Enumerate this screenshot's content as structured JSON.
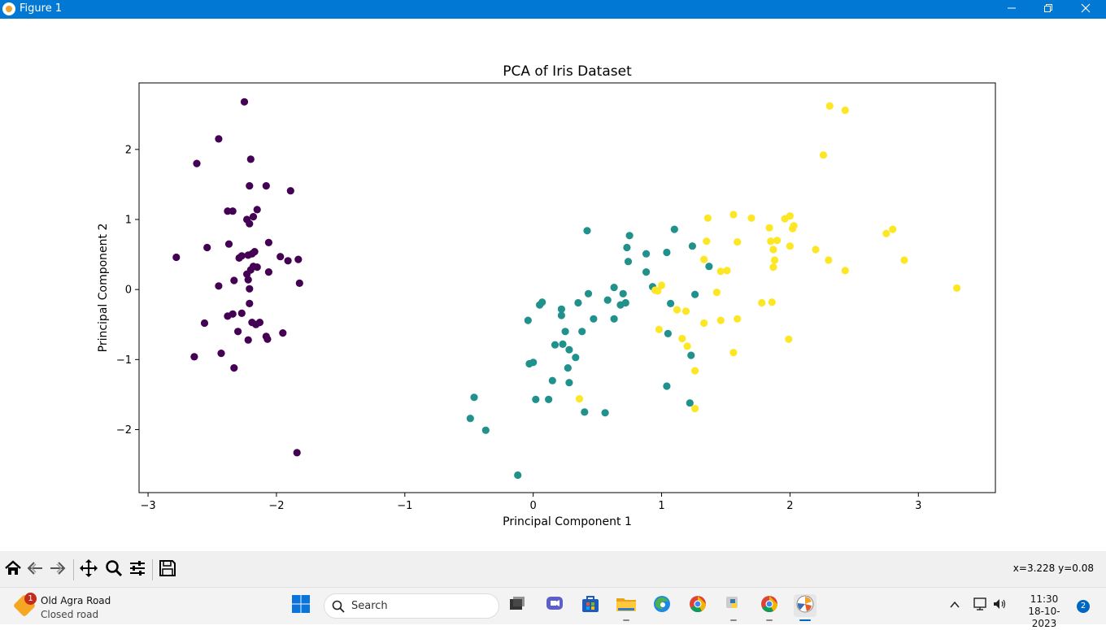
{
  "window": {
    "title": "Figure 1",
    "controls": [
      "minimize-icon",
      "maximize-icon",
      "close-icon"
    ]
  },
  "colors": {
    "titlebar": "#0078d4",
    "setosa": "#440154",
    "versicolor": "#21918c",
    "virginica": "#fde725"
  },
  "chart_data": {
    "type": "scatter",
    "title": "PCA of Iris Dataset",
    "xlabel": "Principal Component 1",
    "ylabel": "Principal Component 2",
    "xlim": [
      -3.07,
      3.6
    ],
    "ylim": [
      -2.9,
      2.95
    ],
    "xticks": [
      -3,
      -2,
      -1,
      0,
      1,
      2,
      3
    ],
    "yticks": [
      -2,
      -1,
      0,
      1,
      2
    ],
    "xtick_labels": [
      "−3",
      "−2",
      "−1",
      "0",
      "1",
      "2",
      "3"
    ],
    "ytick_labels": [
      "−2",
      "−1",
      "0",
      "1",
      "2"
    ],
    "grid": false,
    "legend": false,
    "series": [
      {
        "color": "#440154",
        "points": [
          [
            -2.25,
            2.68
          ],
          [
            -2.45,
            2.15
          ],
          [
            -2.62,
            1.8
          ],
          [
            -2.2,
            1.86
          ],
          [
            -2.21,
            1.48
          ],
          [
            -2.08,
            1.48
          ],
          [
            -1.89,
            1.41
          ],
          [
            -2.38,
            1.12
          ],
          [
            -2.34,
            1.12
          ],
          [
            -2.15,
            1.14
          ],
          [
            -2.18,
            1.04
          ],
          [
            -2.23,
            1.0
          ],
          [
            -2.21,
            0.94
          ],
          [
            -2.06,
            0.67
          ],
          [
            -2.37,
            0.65
          ],
          [
            -2.54,
            0.6
          ],
          [
            -2.78,
            0.46
          ],
          [
            -1.97,
            0.47
          ],
          [
            -2.22,
            0.49
          ],
          [
            -2.19,
            0.51
          ],
          [
            -2.17,
            0.54
          ],
          [
            -2.29,
            0.45
          ],
          [
            -2.27,
            0.48
          ],
          [
            -1.91,
            0.41
          ],
          [
            -1.83,
            0.43
          ],
          [
            -2.18,
            0.33
          ],
          [
            -2.15,
            0.32
          ],
          [
            -2.2,
            0.28
          ],
          [
            -2.06,
            0.25
          ],
          [
            -2.23,
            0.22
          ],
          [
            -2.22,
            0.14
          ],
          [
            -2.33,
            0.13
          ],
          [
            -2.45,
            0.05
          ],
          [
            -2.21,
            0.01
          ],
          [
            -1.82,
            0.09
          ],
          [
            -2.21,
            -0.2
          ],
          [
            -2.34,
            -0.35
          ],
          [
            -2.38,
            -0.38
          ],
          [
            -2.27,
            -0.34
          ],
          [
            -2.56,
            -0.48
          ],
          [
            -2.19,
            -0.47
          ],
          [
            -2.16,
            -0.5
          ],
          [
            -2.13,
            -0.47
          ],
          [
            -2.3,
            -0.6
          ],
          [
            -1.95,
            -0.62
          ],
          [
            -2.08,
            -0.67
          ],
          [
            -2.07,
            -0.71
          ],
          [
            -2.22,
            -0.72
          ],
          [
            -2.43,
            -0.91
          ],
          [
            -2.64,
            -0.96
          ],
          [
            -2.33,
            -1.12
          ],
          [
            -1.84,
            -2.33
          ]
        ]
      },
      {
        "color": "#21918c",
        "points": [
          [
            1.1,
            0.86
          ],
          [
            0.42,
            0.84
          ],
          [
            0.75,
            0.77
          ],
          [
            0.73,
            0.6
          ],
          [
            0.88,
            0.51
          ],
          [
            1.04,
            0.53
          ],
          [
            1.24,
            0.62
          ],
          [
            1.37,
            0.33
          ],
          [
            0.74,
            0.4
          ],
          [
            0.88,
            0.25
          ],
          [
            0.93,
            0.04
          ],
          [
            0.63,
            0.03
          ],
          [
            0.43,
            -0.06
          ],
          [
            0.7,
            -0.06
          ],
          [
            0.58,
            -0.15
          ],
          [
            0.68,
            -0.22
          ],
          [
            0.72,
            -0.19
          ],
          [
            0.35,
            -0.19
          ],
          [
            0.07,
            -0.18
          ],
          [
            0.05,
            -0.22
          ],
          [
            1.07,
            -0.2
          ],
          [
            1.26,
            -0.07
          ],
          [
            0.22,
            -0.28
          ],
          [
            0.22,
            -0.37
          ],
          [
            0.47,
            -0.42
          ],
          [
            0.63,
            -0.42
          ],
          [
            -0.04,
            -0.44
          ],
          [
            0.38,
            -0.6
          ],
          [
            0.25,
            -0.6
          ],
          [
            1.05,
            -0.63
          ],
          [
            0.17,
            -0.79
          ],
          [
            0.23,
            -0.78
          ],
          [
            0.28,
            -0.86
          ],
          [
            1.23,
            -0.94
          ],
          [
            0.33,
            -0.97
          ],
          [
            0.0,
            -1.04
          ],
          [
            -0.03,
            -1.06
          ],
          [
            0.27,
            -1.12
          ],
          [
            0.15,
            -1.3
          ],
          [
            0.28,
            -1.33
          ],
          [
            1.04,
            -1.38
          ],
          [
            -0.46,
            -1.54
          ],
          [
            0.02,
            -1.57
          ],
          [
            0.12,
            -1.57
          ],
          [
            1.22,
            -1.62
          ],
          [
            -0.49,
            -1.84
          ],
          [
            0.4,
            -1.75
          ],
          [
            0.56,
            -1.76
          ],
          [
            -0.37,
            -2.01
          ],
          [
            -0.12,
            -2.65
          ]
        ]
      },
      {
        "color": "#fde725",
        "points": [
          [
            2.31,
            2.62
          ],
          [
            2.43,
            2.56
          ],
          [
            2.26,
            1.92
          ],
          [
            1.56,
            1.07
          ],
          [
            1.36,
            1.02
          ],
          [
            1.7,
            1.02
          ],
          [
            1.96,
            1.01
          ],
          [
            2.0,
            1.05
          ],
          [
            2.03,
            0.91
          ],
          [
            2.02,
            0.87
          ],
          [
            1.84,
            0.88
          ],
          [
            2.8,
            0.86
          ],
          [
            2.75,
            0.8
          ],
          [
            1.35,
            0.69
          ],
          [
            1.59,
            0.68
          ],
          [
            1.85,
            0.69
          ],
          [
            1.9,
            0.7
          ],
          [
            2.0,
            0.62
          ],
          [
            1.87,
            0.57
          ],
          [
            2.2,
            0.57
          ],
          [
            2.3,
            0.42
          ],
          [
            1.88,
            0.42
          ],
          [
            2.89,
            0.42
          ],
          [
            1.33,
            0.43
          ],
          [
            1.87,
            0.32
          ],
          [
            1.51,
            0.27
          ],
          [
            1.46,
            0.26
          ],
          [
            2.43,
            0.27
          ],
          [
            1.0,
            0.06
          ],
          [
            0.95,
            -0.01
          ],
          [
            0.97,
            -0.02
          ],
          [
            1.43,
            -0.04
          ],
          [
            3.3,
            0.02
          ],
          [
            1.78,
            -0.19
          ],
          [
            1.86,
            -0.18
          ],
          [
            1.12,
            -0.29
          ],
          [
            1.19,
            -0.31
          ],
          [
            1.59,
            -0.42
          ],
          [
            1.46,
            -0.44
          ],
          [
            1.33,
            -0.48
          ],
          [
            0.98,
            -0.57
          ],
          [
            1.99,
            -0.71
          ],
          [
            1.16,
            -0.7
          ],
          [
            1.2,
            -0.81
          ],
          [
            1.56,
            -0.9
          ],
          [
            1.26,
            -1.16
          ],
          [
            0.36,
            -1.56
          ],
          [
            1.26,
            -1.7
          ]
        ]
      }
    ]
  },
  "toolbar": {
    "buttons": [
      "home-icon",
      "back-icon",
      "forward-icon",
      "pan-icon",
      "zoom-icon",
      "configure-icon",
      "save-icon"
    ],
    "coords": "x=3.228 y=0.08"
  },
  "taskbar": {
    "weather_title": "Old Agra Road",
    "weather_subtitle": "Closed road",
    "weather_badge": "1",
    "search_label": "Search",
    "time": "11:30",
    "date": "18-10-2023",
    "notification_count": "2"
  }
}
